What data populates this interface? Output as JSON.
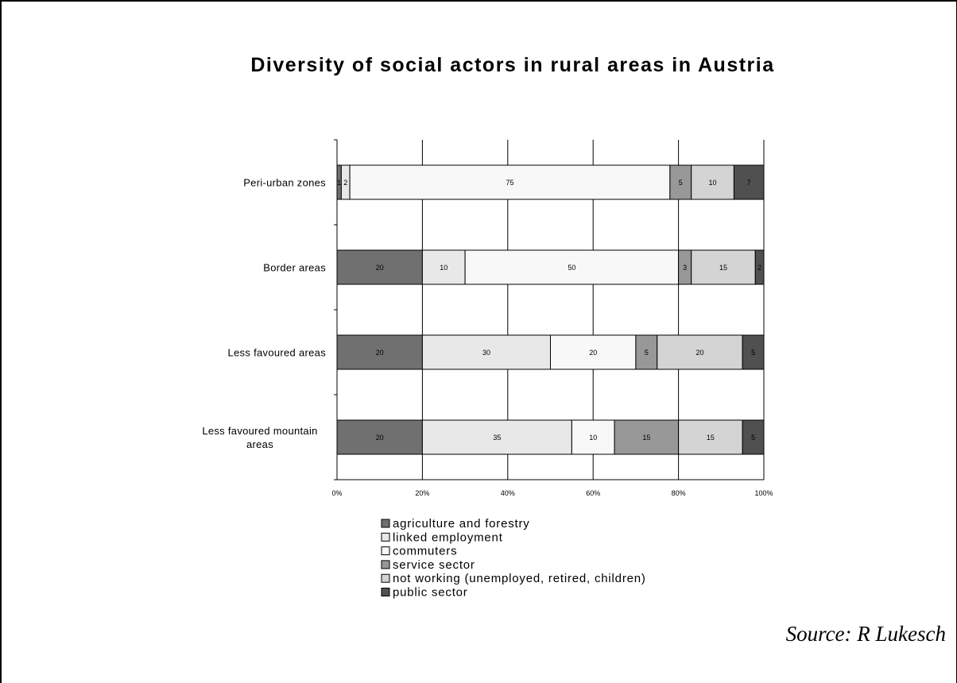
{
  "chart_data": {
    "type": "bar",
    "orientation": "horizontal",
    "stacked": "percent",
    "title": "Diversity of social actors in rural areas in Austria",
    "categories": [
      "Peri-urban zones",
      "Border areas",
      "Less favoured areas",
      "Less favoured mountain areas"
    ],
    "series": [
      {
        "name": "agriculture and forestry",
        "color": "#707070",
        "values": [
          1,
          20,
          20,
          20
        ],
        "labels": [
          "1",
          "20",
          "20",
          "20"
        ]
      },
      {
        "name": "linked employment",
        "color": "#e8e8e8",
        "values": [
          2,
          10,
          30,
          35
        ],
        "labels": [
          "2",
          "10",
          "30",
          "35"
        ]
      },
      {
        "name": "commuters",
        "color": "#f8f8f8",
        "values": [
          75,
          50,
          20,
          10
        ],
        "labels": [
          "75",
          "50",
          "20",
          "10"
        ]
      },
      {
        "name": "service sector",
        "color": "#989898",
        "values": [
          5,
          3,
          5,
          15
        ],
        "labels": [
          "5",
          "3",
          "5",
          "15"
        ]
      },
      {
        "name": "not working (unemployed, retired, children)",
        "color": "#d4d4d4",
        "values": [
          10,
          15,
          20,
          15
        ],
        "labels": [
          "10",
          "15",
          "20",
          "15"
        ]
      },
      {
        "name": "public sector",
        "color": "#505050",
        "values": [
          7,
          2,
          5,
          5
        ],
        "labels": [
          "7",
          "2",
          "5",
          "5"
        ]
      }
    ],
    "xticks": [
      "0%",
      "20%",
      "40%",
      "60%",
      "80%",
      "100%"
    ],
    "xlim": [
      0,
      100
    ],
    "grid": true,
    "legend": "bottom"
  },
  "source": "Source: R Lukesch"
}
